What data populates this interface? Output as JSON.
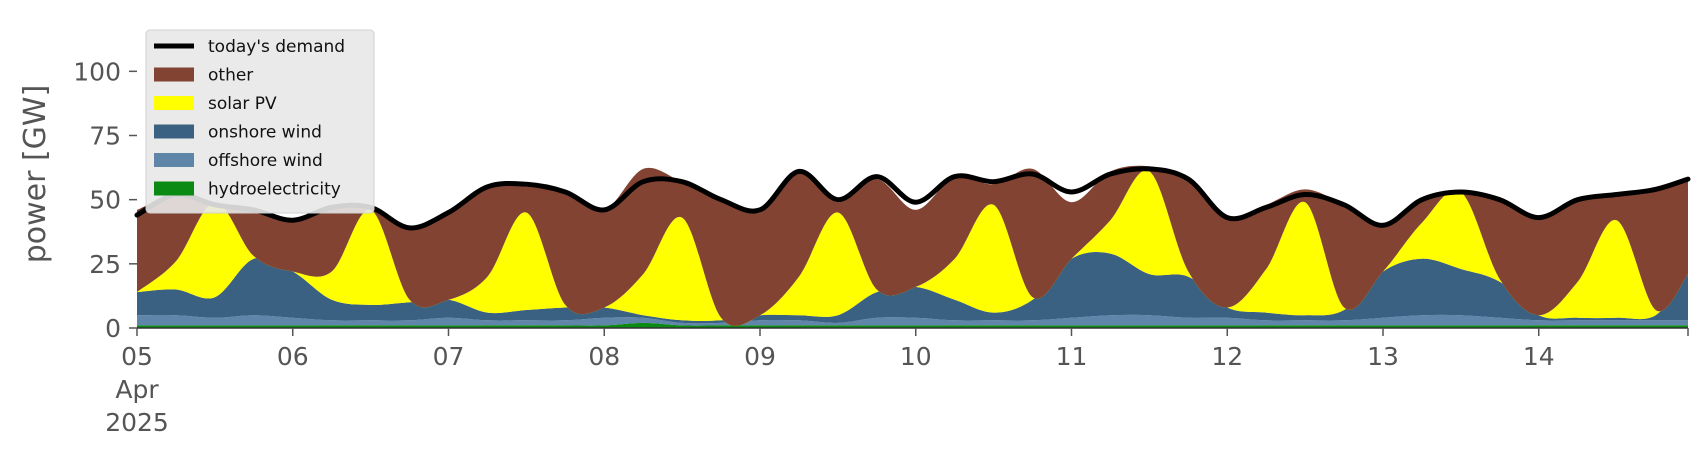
{
  "chart_data": {
    "type": "area",
    "ylabel": "power [GW]",
    "xlabel": "",
    "ylim": [
      0,
      120
    ],
    "yticks": [
      0,
      25,
      50,
      75,
      100
    ],
    "xlim": [
      "2025-04-05T00:00",
      "2025-04-14T23:00"
    ],
    "x_tick_labels": [
      {
        "x": "2025-04-05T00:00",
        "lines": [
          "05",
          "Apr",
          "2025"
        ]
      },
      {
        "x": "2025-04-06T00:00",
        "lines": [
          "06"
        ]
      },
      {
        "x": "2025-04-07T00:00",
        "lines": [
          "07"
        ]
      },
      {
        "x": "2025-04-08T00:00",
        "lines": [
          "08"
        ]
      },
      {
        "x": "2025-04-09T00:00",
        "lines": [
          "09"
        ]
      },
      {
        "x": "2025-04-10T00:00",
        "lines": [
          "10"
        ]
      },
      {
        "x": "2025-04-11T00:00",
        "lines": [
          "11"
        ]
      },
      {
        "x": "2025-04-12T00:00",
        "lines": [
          "12"
        ]
      },
      {
        "x": "2025-04-13T00:00",
        "lines": [
          "13"
        ]
      },
      {
        "x": "2025-04-14T00:00",
        "lines": [
          "14"
        ]
      }
    ],
    "legend": {
      "position": "upper-left",
      "entries": [
        {
          "label": "today's demand",
          "kind": "line",
          "color": "#000000"
        },
        {
          "label": "other",
          "kind": "patch",
          "color": "#824332"
        },
        {
          "label": "solar PV",
          "kind": "patch",
          "color": "#ffff00"
        },
        {
          "label": "onshore wind",
          "kind": "patch",
          "color": "#3b6182"
        },
        {
          "label": "offshore wind",
          "kind": "patch",
          "color": "#5f85a8"
        },
        {
          "label": "hydroelectricity",
          "kind": "patch",
          "color": "#0b8a13"
        }
      ]
    },
    "stack_order": [
      "hydroelectricity",
      "offshore wind",
      "onshore wind",
      "solar PV",
      "other"
    ],
    "colors": {
      "hydroelectricity": "#0b8a13",
      "offshore wind": "#5f85a8",
      "onshore wind": "#3b6182",
      "solar PV": "#ffff00",
      "other": "#824332",
      "today's demand": "#000000"
    },
    "x": [
      "2025-04-05T00:00",
      "2025-04-05T06:00",
      "2025-04-05T12:00",
      "2025-04-05T18:00",
      "2025-04-06T00:00",
      "2025-04-06T06:00",
      "2025-04-06T12:00",
      "2025-04-06T18:00",
      "2025-04-07T00:00",
      "2025-04-07T06:00",
      "2025-04-07T12:00",
      "2025-04-07T18:00",
      "2025-04-08T00:00",
      "2025-04-08T06:00",
      "2025-04-08T12:00",
      "2025-04-08T18:00",
      "2025-04-09T00:00",
      "2025-04-09T06:00",
      "2025-04-09T12:00",
      "2025-04-09T18:00",
      "2025-04-10T00:00",
      "2025-04-10T06:00",
      "2025-04-10T12:00",
      "2025-04-10T18:00",
      "2025-04-11T00:00",
      "2025-04-11T06:00",
      "2025-04-11T12:00",
      "2025-04-11T18:00",
      "2025-04-12T00:00",
      "2025-04-12T06:00",
      "2025-04-12T12:00",
      "2025-04-12T18:00",
      "2025-04-13T00:00",
      "2025-04-13T06:00",
      "2025-04-13T12:00",
      "2025-04-13T18:00",
      "2025-04-14T00:00",
      "2025-04-14T06:00",
      "2025-04-14T12:00",
      "2025-04-14T18:00",
      "2025-04-14T23:00"
    ],
    "series": [
      {
        "name": "hydroelectricity",
        "values": [
          1,
          1,
          1,
          1,
          1,
          1,
          1,
          1,
          1,
          1,
          1,
          1,
          1,
          2,
          1,
          1,
          1,
          1,
          1,
          1,
          1,
          1,
          1,
          1,
          1,
          1,
          1,
          1,
          1,
          1,
          1,
          1,
          1,
          1,
          1,
          1,
          1,
          1,
          1,
          1,
          1
        ]
      },
      {
        "name": "offshore wind",
        "values": [
          4,
          4,
          3,
          4,
          3,
          2,
          2,
          2,
          3,
          2,
          2,
          2,
          3,
          2,
          1,
          1,
          2,
          2,
          1,
          3,
          3,
          2,
          2,
          2,
          3,
          4,
          4,
          3,
          3,
          2,
          2,
          2,
          3,
          4,
          4,
          3,
          2,
          2,
          2,
          2,
          2
        ]
      },
      {
        "name": "onshore wind",
        "values": [
          9,
          10,
          8,
          22,
          18,
          8,
          6,
          7,
          7,
          3,
          4,
          5,
          4,
          1,
          1,
          1,
          2,
          2,
          3,
          10,
          12,
          8,
          3,
          8,
          23,
          24,
          16,
          16,
          4,
          3,
          2,
          4,
          18,
          22,
          18,
          14,
          2,
          1,
          1,
          2,
          18
        ]
      },
      {
        "name": "solar PV",
        "values": [
          0,
          11,
          37,
          1,
          0,
          11,
          37,
          1,
          0,
          14,
          38,
          1,
          0,
          16,
          40,
          1,
          0,
          15,
          40,
          1,
          0,
          16,
          42,
          1,
          0,
          13,
          40,
          2,
          0,
          17,
          44,
          1,
          0,
          14,
          30,
          1,
          0,
          14,
          38,
          2,
          0
        ]
      },
      {
        "name": "other",
        "values": [
          32,
          26,
          0,
          18,
          20,
          26,
          0,
          28,
          34,
          35,
          10,
          44,
          38,
          41,
          14,
          47,
          40,
          41,
          4,
          43,
          30,
          32,
          8,
          50,
          22,
          19,
          2,
          36,
          35,
          25,
          5,
          40,
          18,
          10,
          0,
          32,
          38,
          32,
          10,
          48,
          37
        ]
      },
      {
        "name": "today's demand",
        "values": [
          44,
          52,
          48,
          46,
          42,
          47,
          47,
          39,
          45,
          55,
          56,
          53,
          46,
          57,
          57,
          50,
          46,
          61,
          50,
          59,
          49,
          59,
          57,
          60,
          53,
          60,
          62,
          58,
          43,
          47,
          52,
          48,
          40,
          50,
          53,
          50,
          43,
          50,
          52,
          54,
          58
        ]
      }
    ]
  }
}
